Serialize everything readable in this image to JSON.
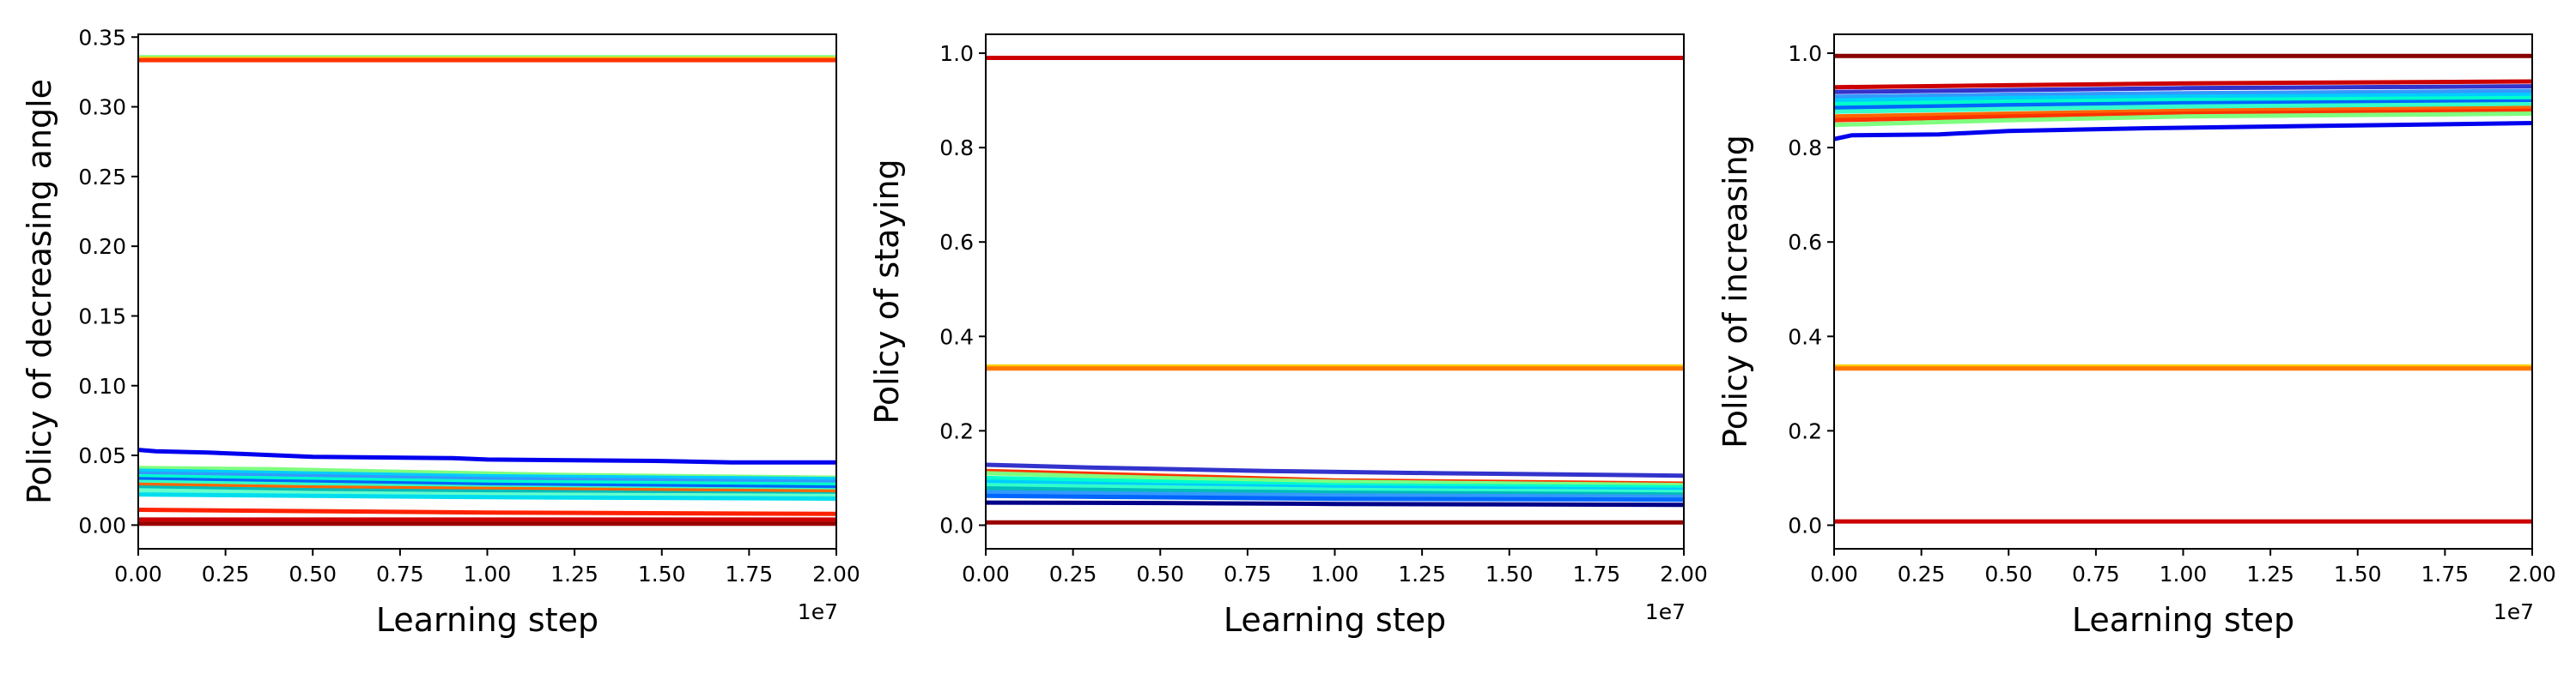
{
  "chart_data": [
    {
      "type": "line",
      "title": "",
      "xlabel": "Learning step",
      "ylabel": "Policy of decreasing angle",
      "x_offset_label": "1e7",
      "xlim": [
        0,
        2.0
      ],
      "ylim": [
        -0.017,
        0.352
      ],
      "xticks": [
        0.0,
        0.25,
        0.5,
        0.75,
        1.0,
        1.25,
        1.5,
        1.75,
        2.0
      ],
      "xtick_labels": [
        "0.00",
        "0.25",
        "0.50",
        "0.75",
        "1.00",
        "1.25",
        "1.50",
        "1.75",
        "2.00"
      ],
      "yticks": [
        0.0,
        0.05,
        0.1,
        0.15,
        0.2,
        0.25,
        0.3,
        0.35
      ],
      "ytick_labels": [
        "0.00",
        "0.05",
        "0.10",
        "0.15",
        "0.20",
        "0.25",
        "0.30",
        "0.35"
      ],
      "grid": false,
      "legend": "none",
      "series": [
        {
          "color": "#7fff7f",
          "values": [
            [
              0,
              0.3355
            ],
            [
              2.0,
              0.3355
            ]
          ]
        },
        {
          "color": "#ffcc00",
          "values": [
            [
              0,
              0.3345
            ],
            [
              2.0,
              0.3345
            ]
          ]
        },
        {
          "color": "#ff3300",
          "values": [
            [
              0,
              0.3335
            ],
            [
              2.0,
              0.3335
            ]
          ]
        },
        {
          "color": "#0000ee",
          "values": [
            [
              0,
              0.054
            ],
            [
              0.05,
              0.053
            ],
            [
              0.2,
              0.052
            ],
            [
              0.3,
              0.051
            ],
            [
              0.5,
              0.049
            ],
            [
              0.9,
              0.048
            ],
            [
              1.0,
              0.047
            ],
            [
              1.5,
              0.046
            ],
            [
              1.7,
              0.045
            ],
            [
              2.0,
              0.045
            ]
          ]
        },
        {
          "color": "#7fff7f",
          "values": [
            [
              0,
              0.041
            ],
            [
              0.4,
              0.04
            ],
            [
              0.8,
              0.038
            ],
            [
              1.2,
              0.036
            ],
            [
              2.0,
              0.034
            ]
          ]
        },
        {
          "color": "#00ccff",
          "values": [
            [
              0,
              0.039
            ],
            [
              0.5,
              0.037
            ],
            [
              1.0,
              0.035
            ],
            [
              1.5,
              0.034
            ],
            [
              2.0,
              0.033
            ]
          ]
        },
        {
          "color": "#3399ff",
          "values": [
            [
              0,
              0.037
            ],
            [
              0.5,
              0.035
            ],
            [
              1.0,
              0.033
            ],
            [
              2.0,
              0.031
            ]
          ]
        },
        {
          "color": "#00ffcc",
          "values": [
            [
              0,
              0.035
            ],
            [
              0.5,
              0.033
            ],
            [
              1.0,
              0.031
            ],
            [
              2.0,
              0.029
            ]
          ]
        },
        {
          "color": "#0066ff",
          "values": [
            [
              0,
              0.033
            ],
            [
              0.5,
              0.031
            ],
            [
              1.0,
              0.029
            ],
            [
              2.0,
              0.027
            ]
          ]
        },
        {
          "color": "#33ffcc",
          "values": [
            [
              0,
              0.031
            ],
            [
              0.5,
              0.029
            ],
            [
              1.0,
              0.027
            ],
            [
              2.0,
              0.025
            ]
          ]
        },
        {
          "color": "#ff6600",
          "values": [
            [
              0,
              0.029
            ],
            [
              0.5,
              0.027
            ],
            [
              1.0,
              0.026
            ],
            [
              2.0,
              0.024
            ]
          ]
        },
        {
          "color": "#00bbbb",
          "values": [
            [
              0,
              0.027
            ],
            [
              0.5,
              0.025
            ],
            [
              1.0,
              0.024
            ],
            [
              2.0,
              0.022
            ]
          ]
        },
        {
          "color": "#66ffcc",
          "values": [
            [
              0,
              0.025
            ],
            [
              0.5,
              0.023
            ],
            [
              1.0,
              0.022
            ],
            [
              2.0,
              0.021
            ]
          ]
        },
        {
          "color": "#00ddee",
          "values": [
            [
              0,
              0.022
            ],
            [
              0.5,
              0.021
            ],
            [
              1.0,
              0.02
            ],
            [
              2.0,
              0.019
            ]
          ]
        },
        {
          "color": "#ff2200",
          "values": [
            [
              0,
              0.011
            ],
            [
              0.5,
              0.01
            ],
            [
              1.0,
              0.009
            ],
            [
              2.0,
              0.008
            ]
          ]
        },
        {
          "color": "#cc0000",
          "values": [
            [
              0,
              0.004
            ],
            [
              2.0,
              0.004
            ]
          ]
        },
        {
          "color": "#990000",
          "values": [
            [
              0,
              0.001
            ],
            [
              2.0,
              0.001
            ]
          ]
        }
      ]
    },
    {
      "type": "line",
      "title": "",
      "xlabel": "Learning step",
      "ylabel": "Policy of staying",
      "x_offset_label": "1e7",
      "xlim": [
        0,
        2.0
      ],
      "ylim": [
        -0.05,
        1.04
      ],
      "xticks": [
        0.0,
        0.25,
        0.5,
        0.75,
        1.0,
        1.25,
        1.5,
        1.75,
        2.0
      ],
      "xtick_labels": [
        "0.00",
        "0.25",
        "0.50",
        "0.75",
        "1.00",
        "1.25",
        "1.50",
        "1.75",
        "2.00"
      ],
      "yticks": [
        0.0,
        0.2,
        0.4,
        0.6,
        0.8,
        1.0
      ],
      "ytick_labels": [
        "0.0",
        "0.2",
        "0.4",
        "0.6",
        "0.8",
        "1.0"
      ],
      "grid": false,
      "legend": "none",
      "series": [
        {
          "color": "#cc0000",
          "values": [
            [
              0,
              0.99
            ],
            [
              2.0,
              0.99
            ]
          ]
        },
        {
          "color": "#ffcc00",
          "values": [
            [
              0,
              0.336
            ],
            [
              2.0,
              0.336
            ]
          ]
        },
        {
          "color": "#ff7700",
          "values": [
            [
              0,
              0.332
            ],
            [
              2.0,
              0.332
            ]
          ]
        },
        {
          "color": "#3333cc",
          "values": [
            [
              0,
              0.128
            ],
            [
              0.3,
              0.122
            ],
            [
              0.8,
              0.115
            ],
            [
              1.3,
              0.11
            ],
            [
              2.0,
              0.105
            ]
          ]
        },
        {
          "color": "#ff3300",
          "values": [
            [
              0,
              0.115
            ],
            [
              0.5,
              0.105
            ],
            [
              1.0,
              0.095
            ],
            [
              2.0,
              0.088
            ]
          ]
        },
        {
          "color": "#7fff7f",
          "values": [
            [
              0,
              0.11
            ],
            [
              0.5,
              0.1
            ],
            [
              1.0,
              0.092
            ],
            [
              2.0,
              0.085
            ]
          ]
        },
        {
          "color": "#00ffcc",
          "values": [
            [
              0,
              0.1
            ],
            [
              0.5,
              0.092
            ],
            [
              1.0,
              0.085
            ],
            [
              2.0,
              0.08
            ]
          ]
        },
        {
          "color": "#00ccff",
          "values": [
            [
              0,
              0.092
            ],
            [
              0.5,
              0.085
            ],
            [
              1.0,
              0.08
            ],
            [
              2.0,
              0.075
            ]
          ]
        },
        {
          "color": "#33ffcc",
          "values": [
            [
              0,
              0.085
            ],
            [
              0.5,
              0.08
            ],
            [
              1.0,
              0.075
            ],
            [
              2.0,
              0.07
            ]
          ]
        },
        {
          "color": "#00bbbb",
          "values": [
            [
              0,
              0.078
            ],
            [
              0.5,
              0.073
            ],
            [
              1.0,
              0.069
            ],
            [
              2.0,
              0.065
            ]
          ]
        },
        {
          "color": "#3399ff",
          "values": [
            [
              0,
              0.07
            ],
            [
              0.5,
              0.066
            ],
            [
              1.0,
              0.063
            ],
            [
              2.0,
              0.06
            ]
          ]
        },
        {
          "color": "#0066ff",
          "values": [
            [
              0,
              0.062
            ],
            [
              0.5,
              0.059
            ],
            [
              1.0,
              0.056
            ],
            [
              2.0,
              0.054
            ]
          ]
        },
        {
          "color": "#000088",
          "values": [
            [
              0,
              0.048
            ],
            [
              0.5,
              0.047
            ],
            [
              1.0,
              0.045
            ],
            [
              2.0,
              0.043
            ]
          ]
        },
        {
          "color": "#990000",
          "values": [
            [
              0,
              0.006
            ],
            [
              2.0,
              0.006
            ]
          ]
        }
      ]
    },
    {
      "type": "line",
      "title": "",
      "xlabel": "Learning step",
      "ylabel": "Policy of increasing",
      "x_offset_label": "1e7",
      "xlim": [
        0,
        2.0
      ],
      "ylim": [
        -0.05,
        1.04
      ],
      "xticks": [
        0.0,
        0.25,
        0.5,
        0.75,
        1.0,
        1.25,
        1.5,
        1.75,
        2.0
      ],
      "xtick_labels": [
        "0.00",
        "0.25",
        "0.50",
        "0.75",
        "1.00",
        "1.25",
        "1.50",
        "1.75",
        "2.00"
      ],
      "yticks": [
        0.0,
        0.2,
        0.4,
        0.6,
        0.8,
        1.0
      ],
      "ytick_labels": [
        "0.0",
        "0.2",
        "0.4",
        "0.6",
        "0.8",
        "1.0"
      ],
      "grid": false,
      "legend": "none",
      "series": [
        {
          "color": "#880000",
          "values": [
            [
              0,
              0.994
            ],
            [
              2.0,
              0.994
            ]
          ]
        },
        {
          "color": "#cc0000",
          "values": [
            [
              0,
              0.928
            ],
            [
              0.5,
              0.932
            ],
            [
              1.0,
              0.936
            ],
            [
              2.0,
              0.94
            ]
          ]
        },
        {
          "color": "#3333cc",
          "values": [
            [
              0,
              0.918
            ],
            [
              0.5,
              0.922
            ],
            [
              1.0,
              0.926
            ],
            [
              2.0,
              0.93
            ]
          ]
        },
        {
          "color": "#3399ff",
          "values": [
            [
              0,
              0.908
            ],
            [
              0.5,
              0.912
            ],
            [
              1.0,
              0.915
            ],
            [
              2.0,
              0.92
            ]
          ]
        },
        {
          "color": "#00ccff",
          "values": [
            [
              0,
              0.9
            ],
            [
              0.5,
              0.905
            ],
            [
              1.0,
              0.908
            ],
            [
              2.0,
              0.912
            ]
          ]
        },
        {
          "color": "#00ffcc",
          "values": [
            [
              0,
              0.892
            ],
            [
              0.5,
              0.897
            ],
            [
              1.0,
              0.901
            ],
            [
              2.0,
              0.905
            ]
          ]
        },
        {
          "color": "#0066ff",
          "values": [
            [
              0,
              0.884
            ],
            [
              0.5,
              0.89
            ],
            [
              1.0,
              0.894
            ],
            [
              2.0,
              0.898
            ]
          ]
        },
        {
          "color": "#33ffcc",
          "values": [
            [
              0,
              0.876
            ],
            [
              0.5,
              0.882
            ],
            [
              1.0,
              0.887
            ],
            [
              2.0,
              0.892
            ]
          ]
        },
        {
          "color": "#ff6600",
          "values": [
            [
              0,
              0.866
            ],
            [
              0.5,
              0.872
            ],
            [
              1.0,
              0.878
            ],
            [
              2.0,
              0.884
            ]
          ]
        },
        {
          "color": "#ff3300",
          "values": [
            [
              0,
              0.858
            ],
            [
              0.5,
              0.866
            ],
            [
              1.0,
              0.872
            ],
            [
              2.0,
              0.878
            ]
          ]
        },
        {
          "color": "#7fff7f",
          "values": [
            [
              0,
              0.848
            ],
            [
              0.5,
              0.858
            ],
            [
              1.0,
              0.866
            ],
            [
              2.0,
              0.872
            ]
          ]
        },
        {
          "color": "#0000ee",
          "values": [
            [
              0,
              0.818
            ],
            [
              0.05,
              0.826
            ],
            [
              0.3,
              0.828
            ],
            [
              0.5,
              0.835
            ],
            [
              0.9,
              0.841
            ],
            [
              1.4,
              0.846
            ],
            [
              1.8,
              0.85
            ],
            [
              2.0,
              0.852
            ]
          ]
        },
        {
          "color": "#ffcc00",
          "values": [
            [
              0,
              0.336
            ],
            [
              2.0,
              0.336
            ]
          ]
        },
        {
          "color": "#ff7700",
          "values": [
            [
              0,
              0.332
            ],
            [
              2.0,
              0.332
            ]
          ]
        },
        {
          "color": "#cc0000",
          "values": [
            [
              0,
              0.008
            ],
            [
              2.0,
              0.008
            ]
          ]
        }
      ]
    }
  ]
}
